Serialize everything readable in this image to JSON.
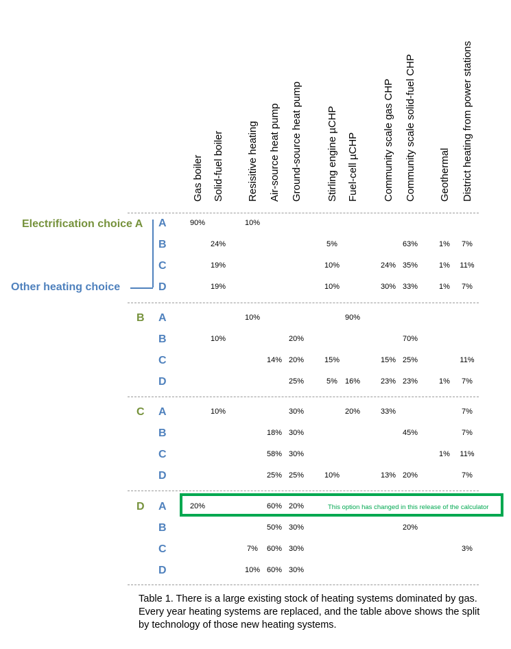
{
  "columns": [
    "Gas boiler",
    "Solid-fuel boiler",
    "Resisitive heating",
    "Air-source heat pump",
    "Ground-source heat pump",
    "Stirling engine µCHP",
    "Fuel-cell µCHP",
    "Community scale gas CHP",
    "Community scale solid-fuel CHP",
    "Geothermal",
    "District heating from power stations"
  ],
  "labels": {
    "electrification": "Electrification choice A",
    "other": "Other heating choice"
  },
  "groups": [
    {
      "letter": "A",
      "rows": [
        {
          "letter": "A",
          "values": [
            "90%",
            "",
            "10%",
            "",
            "",
            "",
            "",
            "",
            "",
            "",
            ""
          ]
        },
        {
          "letter": "B",
          "values": [
            "",
            "24%",
            "",
            "",
            "",
            "5%",
            "",
            "",
            "63%",
            "1%",
            "7%"
          ]
        },
        {
          "letter": "C",
          "values": [
            "",
            "19%",
            "",
            "",
            "",
            "10%",
            "",
            "24%",
            "35%",
            "1%",
            "11%"
          ]
        },
        {
          "letter": "D",
          "values": [
            "",
            "19%",
            "",
            "",
            "",
            "10%",
            "",
            "30%",
            "33%",
            "1%",
            "7%"
          ]
        }
      ]
    },
    {
      "letter": "B",
      "rows": [
        {
          "letter": "A",
          "values": [
            "",
            "",
            "10%",
            "",
            "",
            "",
            "90%",
            "",
            "",
            "",
            ""
          ]
        },
        {
          "letter": "B",
          "values": [
            "",
            "10%",
            "",
            "",
            "20%",
            "",
            "",
            "",
            "70%",
            "",
            ""
          ]
        },
        {
          "letter": "C",
          "values": [
            "",
            "",
            "",
            "14%",
            "20%",
            "15%",
            "",
            "15%",
            "25%",
            "",
            "11%"
          ]
        },
        {
          "letter": "D",
          "values": [
            "",
            "",
            "",
            "",
            "25%",
            "5%",
            "16%",
            "23%",
            "23%",
            "1%",
            "7%"
          ]
        }
      ]
    },
    {
      "letter": "C",
      "rows": [
        {
          "letter": "A",
          "values": [
            "",
            "10%",
            "",
            "",
            "30%",
            "",
            "20%",
            "33%",
            "",
            "",
            "7%"
          ]
        },
        {
          "letter": "B",
          "values": [
            "",
            "",
            "",
            "18%",
            "30%",
            "",
            "",
            "",
            "45%",
            "",
            "7%"
          ]
        },
        {
          "letter": "C",
          "values": [
            "",
            "",
            "",
            "58%",
            "30%",
            "",
            "",
            "",
            "",
            "1%",
            "11%"
          ]
        },
        {
          "letter": "D",
          "values": [
            "",
            "",
            "",
            "25%",
            "25%",
            "10%",
            "",
            "13%",
            "20%",
            "",
            "7%"
          ]
        }
      ]
    },
    {
      "letter": "D",
      "rows": [
        {
          "letter": "A",
          "values": [
            "20%",
            "",
            "",
            "60%",
            "20%",
            "",
            "",
            "",
            "",
            "",
            ""
          ]
        },
        {
          "letter": "B",
          "values": [
            "",
            "",
            "",
            "50%",
            "30%",
            "",
            "",
            "",
            "20%",
            "",
            ""
          ]
        },
        {
          "letter": "C",
          "values": [
            "",
            "",
            "7%",
            "60%",
            "30%",
            "",
            "",
            "",
            "",
            "",
            "3%"
          ]
        },
        {
          "letter": "D",
          "values": [
            "",
            "",
            "10%",
            "60%",
            "30%",
            "",
            "",
            "",
            "",
            "",
            ""
          ]
        }
      ]
    }
  ],
  "highlight_note": "This option has changed in this release of the calculator",
  "caption": "Table 1. There is a large existing stock of heating systems dominated by gas. Every year heating systems are replaced, and the table above shows the split by technology of those new heating systems.",
  "colors": {
    "electrification": "#76923c",
    "other": "#4f81bd",
    "highlight": "#00a850"
  }
}
